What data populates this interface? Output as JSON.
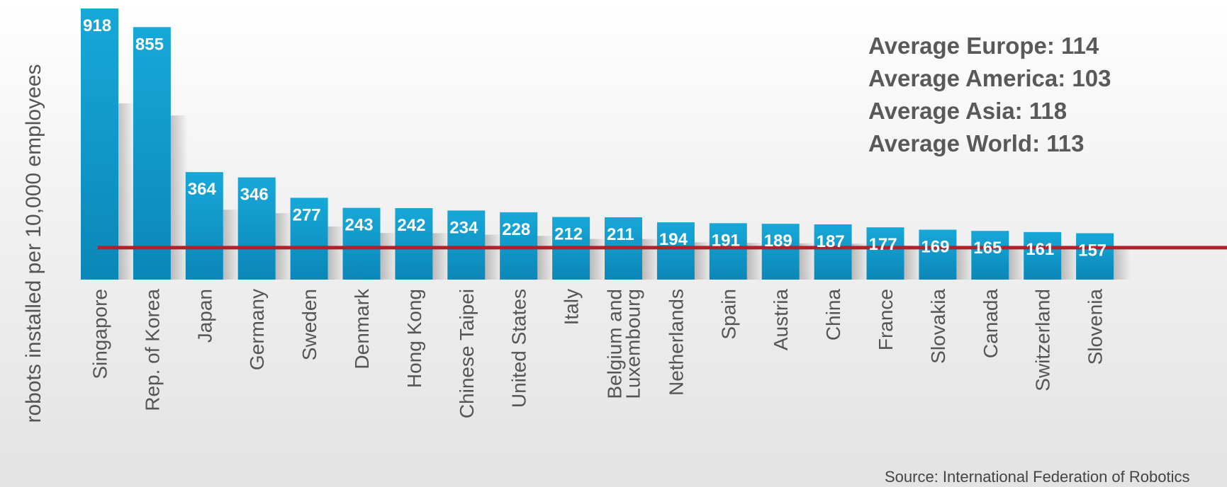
{
  "chart_data": {
    "type": "bar",
    "ylabel": "robots installed per 10,000 employees",
    "categories": [
      "Singapore",
      "Rep. of Korea",
      "Japan",
      "Germany",
      "Sweden",
      "Denmark",
      "Hong Kong",
      "Chinese Taipei",
      "United States",
      "Italy",
      "Belgium and\nLuxembourg",
      "Netherlands",
      "Spain",
      "Austria",
      "China",
      "France",
      "Slovakia",
      "Canada",
      "Switzerland",
      "Slovenia"
    ],
    "values": [
      918,
      855,
      364,
      346,
      277,
      243,
      242,
      234,
      228,
      212,
      211,
      194,
      191,
      189,
      187,
      177,
      169,
      165,
      161,
      157
    ],
    "reference_line": 113,
    "bar_color": "#0e97c7",
    "reference_line_color": "#b3202a",
    "annotations": [
      "Average Europe: 114",
      "Average America: 103",
      "Average Asia: 118",
      "Average World: 113"
    ],
    "source": "Source: International Federation of Robotics"
  }
}
